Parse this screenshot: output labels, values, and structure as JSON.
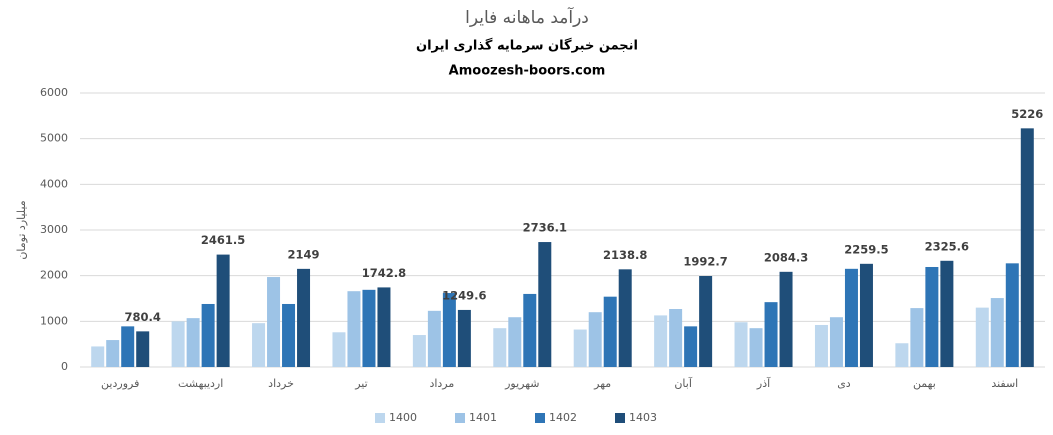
{
  "chart_data": {
    "type": "bar",
    "title": "درآمد ماهانه فایرا",
    "subtitle": "انجمن خبرگان سرمایه گذاری ایران",
    "source": "Amoozesh-boors.com",
    "y_label": "میلیارد تومان",
    "categories": [
      "فروردین",
      "اردیبهشت",
      "خرداد",
      "تیر",
      "مرداد",
      "شهریور",
      "مهر",
      "آبان",
      "آذر",
      "دی",
      "بهمن",
      "اسفند"
    ],
    "series": [
      {
        "name": "1400",
        "color": "#bdd7ee",
        "values": [
          450,
          1000,
          960,
          760,
          700,
          850,
          820,
          1130,
          980,
          920,
          520,
          1300
        ]
      },
      {
        "name": "1401",
        "color": "#9dc3e6",
        "values": [
          590,
          1070,
          1970,
          1660,
          1230,
          1090,
          1200,
          1270,
          850,
          1090,
          1290,
          1510
        ]
      },
      {
        "name": "1402",
        "color": "#2e75b6",
        "values": [
          890,
          1380,
          1380,
          1690,
          1620,
          1600,
          1540,
          890,
          1420,
          2150,
          2190,
          2270
        ]
      },
      {
        "name": "1403",
        "color": "#1f4e79",
        "show_labels": true,
        "values": [
          780.4,
          2461.5,
          2149,
          1742.8,
          1249.6,
          2736.1,
          2138.8,
          1992.7,
          2084.3,
          2259.5,
          2325.6,
          5226
        ]
      }
    ],
    "ylim": [
      0,
      6000
    ],
    "yticks": [
      0,
      1000,
      2000,
      3000,
      4000,
      5000,
      6000
    ],
    "grid": true,
    "legend": "bottom"
  }
}
